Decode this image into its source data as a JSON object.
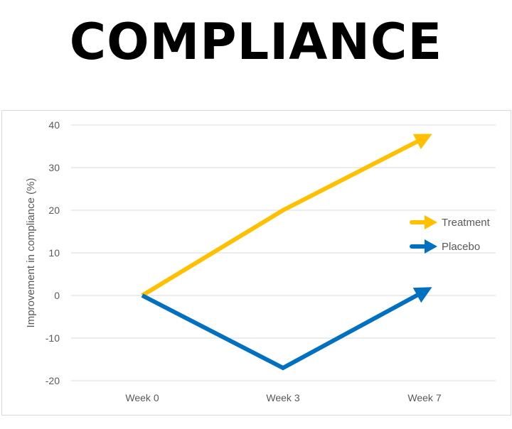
{
  "title": "COMPLIANCE",
  "chart_data": {
    "type": "line",
    "title": "",
    "xlabel": "",
    "ylabel": "Improvement in compliance (%)",
    "categories": [
      "Week 0",
      "Week 3",
      "Week 7"
    ],
    "ylim": [
      -20,
      40
    ],
    "yticks": [
      "40",
      "30",
      "20",
      "10",
      "0",
      "-10",
      "-20"
    ],
    "grid": true,
    "legend": "right",
    "series": [
      {
        "name": "Treatment",
        "values": [
          0,
          20,
          37
        ],
        "color": "#FFC000"
      },
      {
        "name": "Placebo",
        "values": [
          0,
          -17,
          1
        ],
        "color": "#0070C0"
      }
    ]
  }
}
